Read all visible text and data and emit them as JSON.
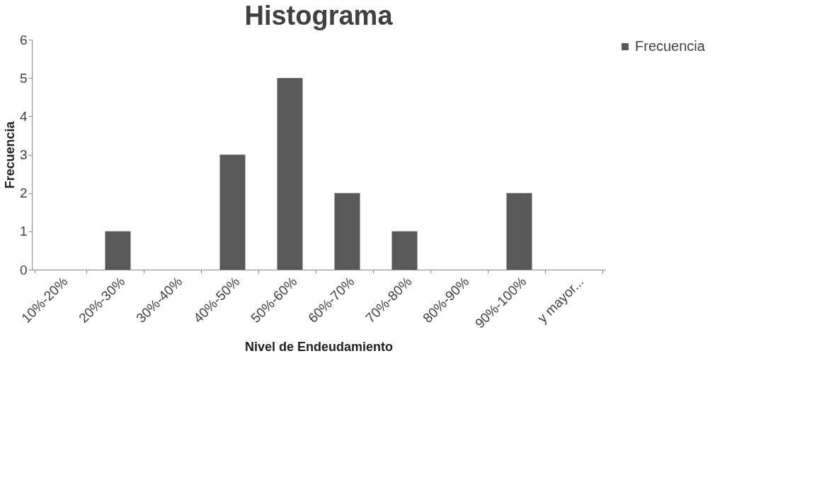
{
  "chart_data": {
    "type": "bar",
    "title": "Histograma",
    "xlabel": "Nivel de Endeudamiento",
    "ylabel": "Frecuencia",
    "categories": [
      "10%-20%",
      "20%-30%",
      "30%-40%",
      "40%-50%",
      "50%-60%",
      "60%-70%",
      "70%-80%",
      "80%-90%",
      "90%-100%",
      "y mayor..."
    ],
    "series": [
      {
        "name": "Frecuencia",
        "color": "#595959",
        "values": [
          0,
          1,
          0,
          3,
          5,
          2,
          1,
          0,
          2,
          0
        ]
      }
    ],
    "ylim": [
      0,
      6
    ],
    "yticks": [
      0,
      1,
      2,
      3,
      4,
      5,
      6
    ],
    "legend": "right"
  }
}
